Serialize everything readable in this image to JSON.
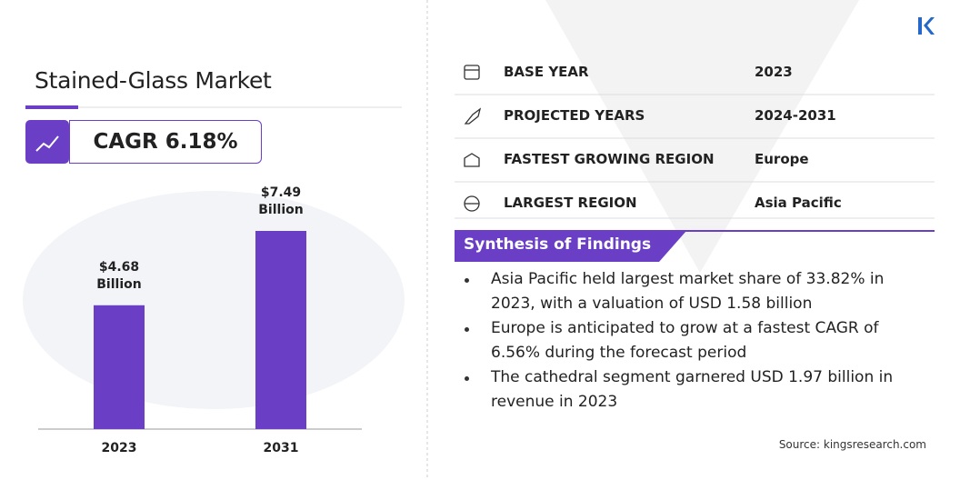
{
  "header": {
    "title": "Stained-Glass Market",
    "cagr": "CAGR 6.18%"
  },
  "chart_data": {
    "type": "bar",
    "categories": [
      "2023",
      "2031"
    ],
    "values": [
      4.68,
      7.49
    ],
    "value_labels": [
      "$4.68 Billion",
      "$7.49 Billion"
    ],
    "color": "#6a3fc6"
  },
  "table": {
    "rows": [
      [
        "BASE YEAR",
        "2023"
      ],
      [
        "PROJECTED YEARS",
        "2024-2031"
      ],
      [
        "FASTEST GROWING REGION",
        "Europe"
      ],
      [
        "LARGEST REGION",
        "Asia Pacific"
      ]
    ]
  },
  "findings": {
    "title": "Synthesis of Findings",
    "items": [
      "Asia Pacific held largest market share of 33.82% in 2023, with a valuation of USD 1.58 billion",
      "Europe is anticipated to grow at a fastest CAGR of 6.56% during the forecast period",
      "The cathedral segment garnered USD 1.97 billion in revenue in 2023"
    ]
  },
  "source": "Source: kingsresearch.com"
}
